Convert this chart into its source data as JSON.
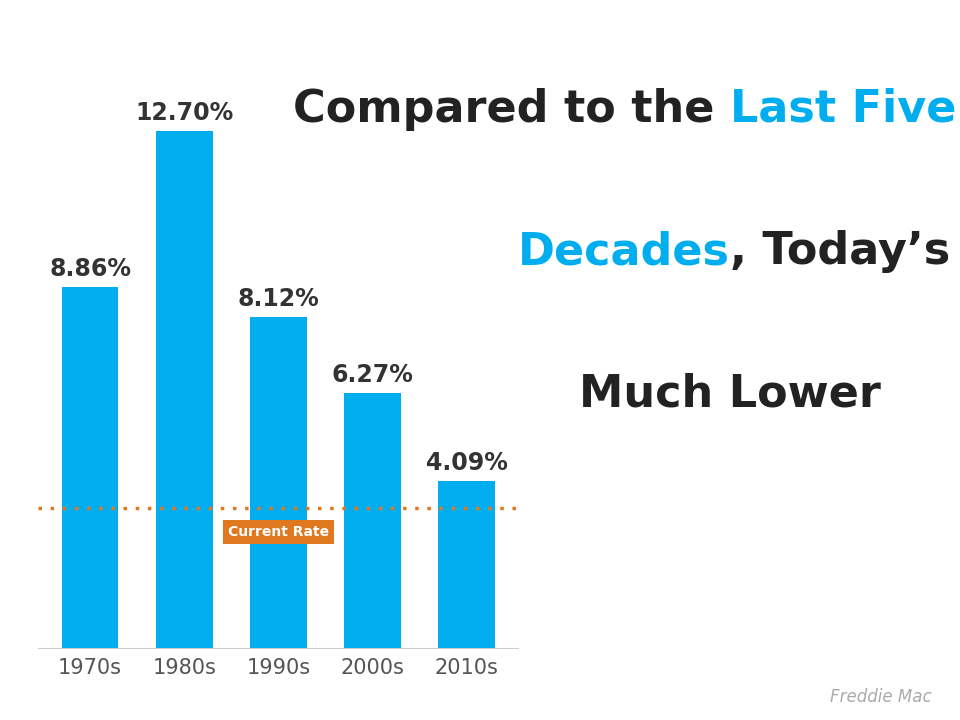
{
  "categories": [
    "1970s",
    "1980s",
    "1990s",
    "2000s",
    "2010s"
  ],
  "values": [
    8.86,
    12.7,
    8.12,
    6.27,
    4.09
  ],
  "labels": [
    "8.86%",
    "12.70%",
    "8.12%",
    "6.27%",
    "4.09%"
  ],
  "bar_color": "#00AEEF",
  "current_rate_line": 3.45,
  "current_rate_label": "Current Rate",
  "current_rate_line_color": "#E07820",
  "current_rate_label_color": "#ffffff",
  "current_rate_bg_color": "#E07820",
  "title_color": "#222222",
  "title_highlight_color": "#00AEEF",
  "source_text": "Freddie Mac",
  "source_color": "#aaaaaa",
  "background_color": "#ffffff",
  "ylim": [
    0,
    14.5
  ],
  "label_fontsize": 17,
  "tick_fontsize": 15,
  "title_fontsize": 32,
  "source_fontsize": 12
}
